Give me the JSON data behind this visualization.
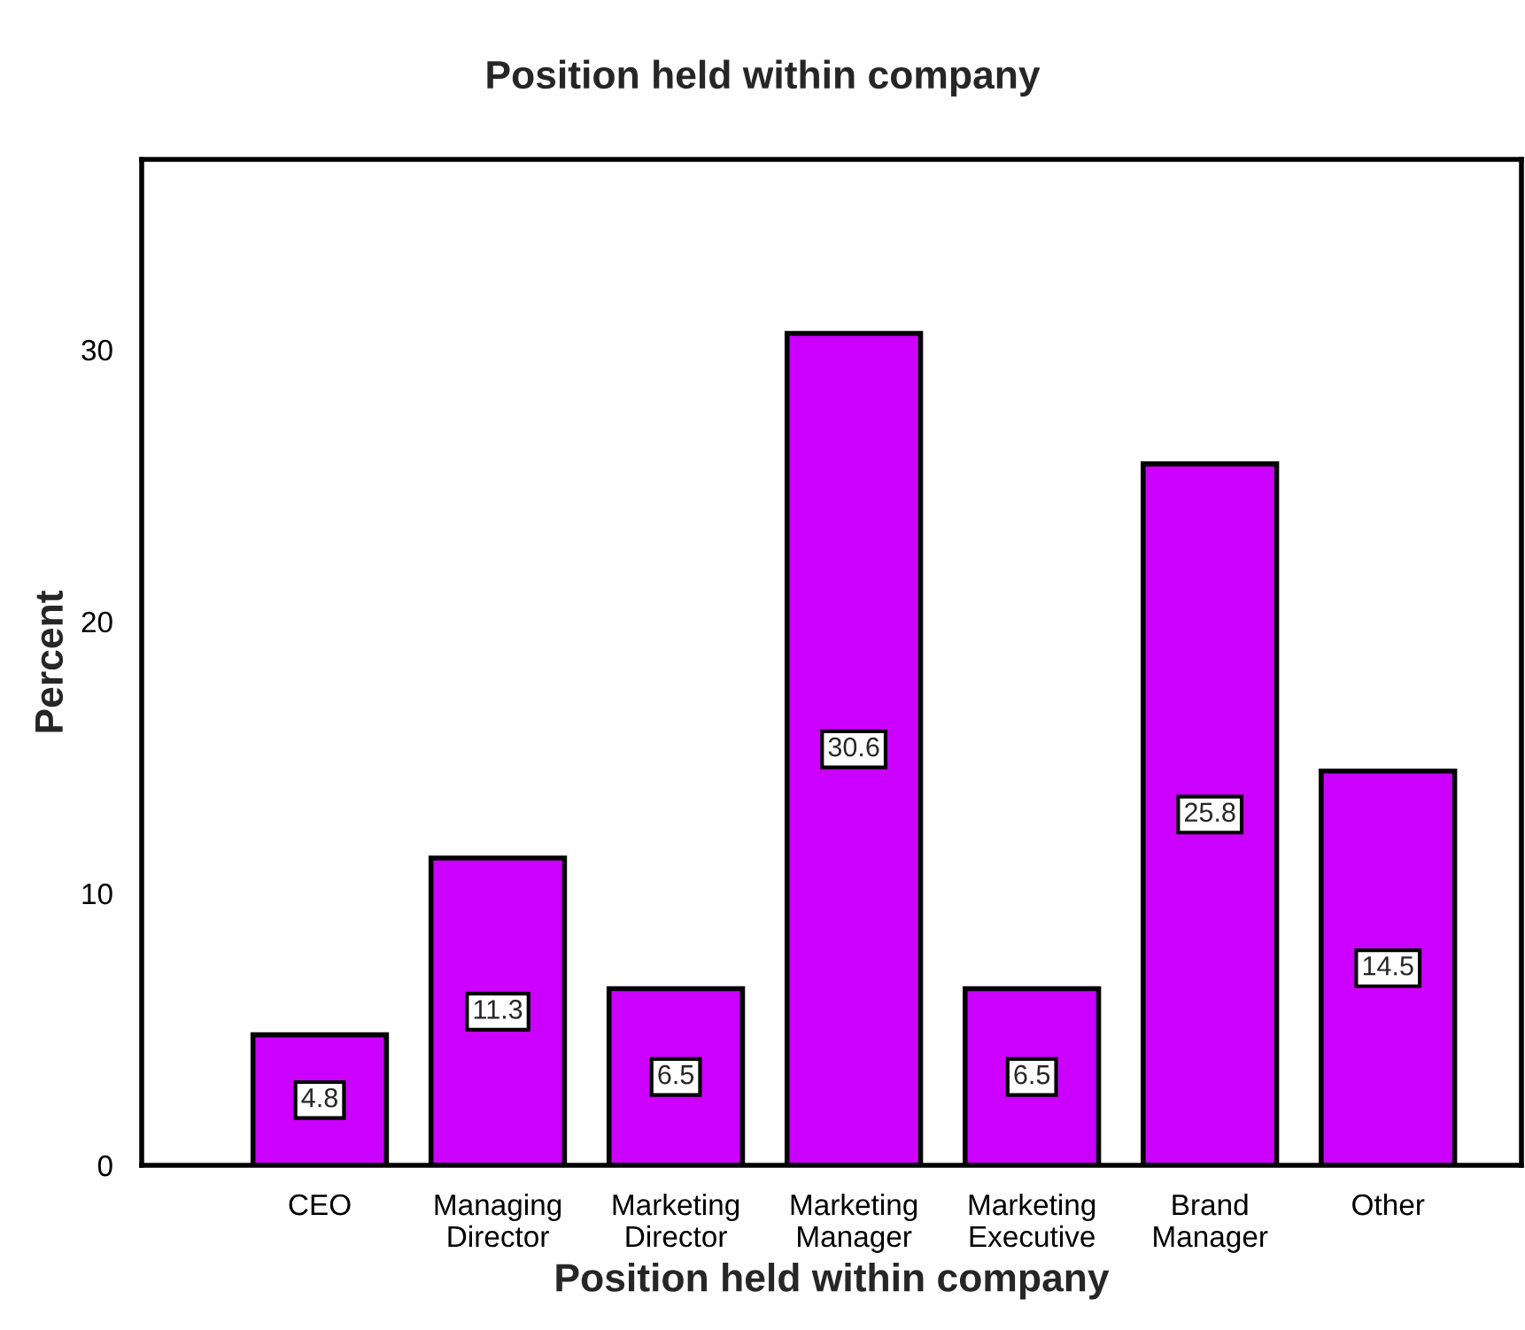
{
  "chart_data": {
    "type": "bar",
    "title": "Position held within company",
    "xlabel": "Position held within company",
    "ylabel": "Percent",
    "categories": [
      "CEO",
      "Managing\nDirector",
      "Marketing\nDirector",
      "Marketing\nManager",
      "Marketing\nExecutive",
      "Brand\nManager",
      "Other"
    ],
    "values": [
      4.8,
      11.3,
      6.5,
      30.6,
      6.5,
      25.8,
      14.5
    ],
    "color": "#cc00ff",
    "ylim": [
      0,
      37
    ],
    "yticks": [
      0,
      10,
      20,
      30
    ],
    "grid": false,
    "legend": false,
    "data_labels": true
  }
}
